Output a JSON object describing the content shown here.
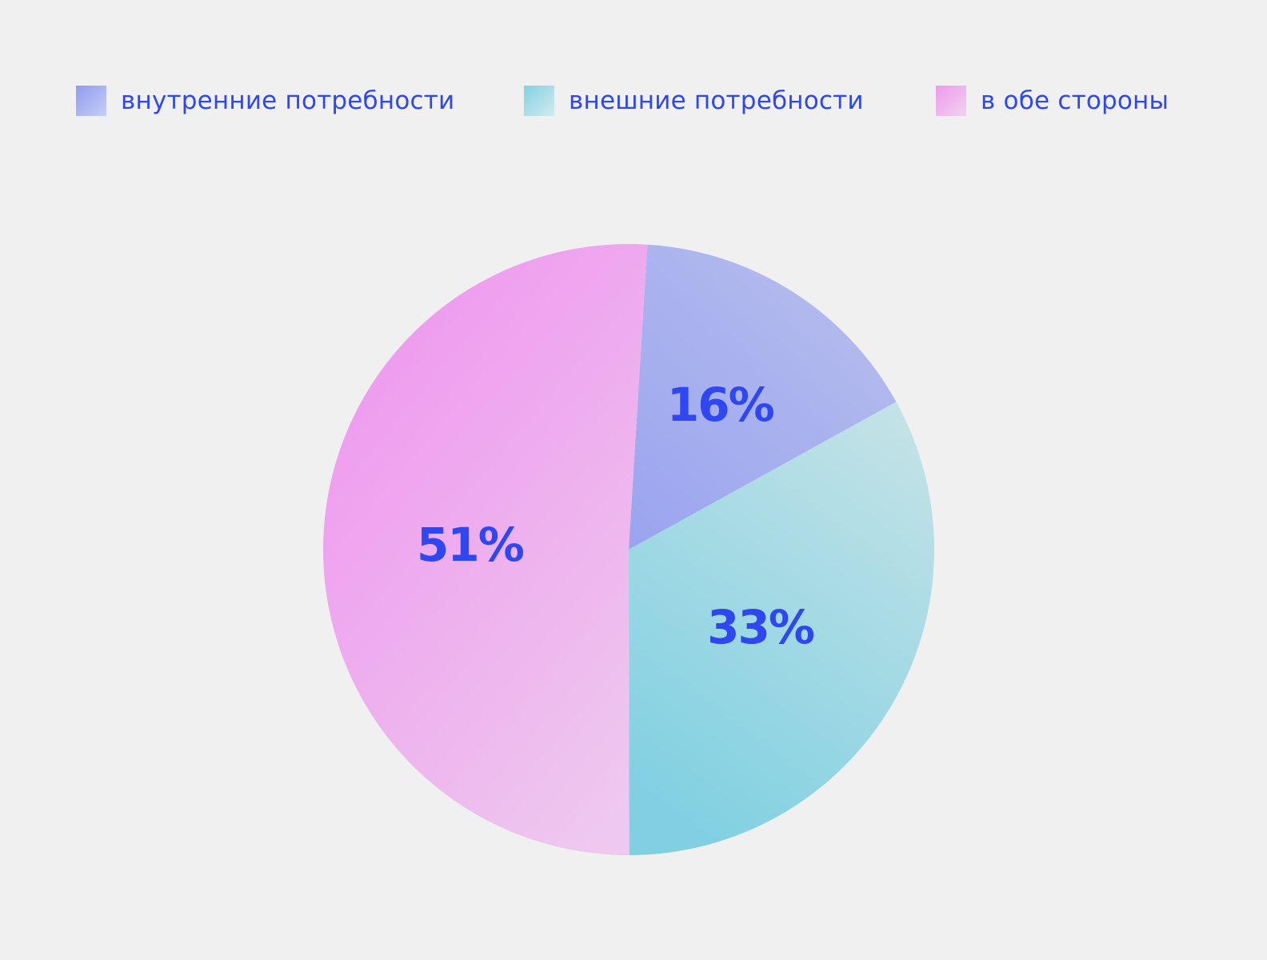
{
  "chart_data": {
    "type": "pie",
    "title": "",
    "legend_position": "top",
    "slices": [
      {
        "label": "внутренние потребности",
        "value": 16,
        "display": "16%",
        "color_start": "#9ba5ef",
        "color_end": "#b4bbee"
      },
      {
        "label": "внешние потребности",
        "value": 33,
        "display": "33%",
        "color_start": "#bfe1e6",
        "color_end": "#80d0e2"
      },
      {
        "label": "в обе стороны",
        "value": 51,
        "display": "51%",
        "color_start": "#ef98ef",
        "color_end": "#eec6ee"
      }
    ]
  },
  "legend": {
    "items": [
      {
        "label": "внутренние потребности"
      },
      {
        "label": "внешние потребности"
      },
      {
        "label": "в обе стороны"
      }
    ]
  },
  "colors": {
    "background": "#f0f0f0",
    "text": "#2f47f0"
  }
}
